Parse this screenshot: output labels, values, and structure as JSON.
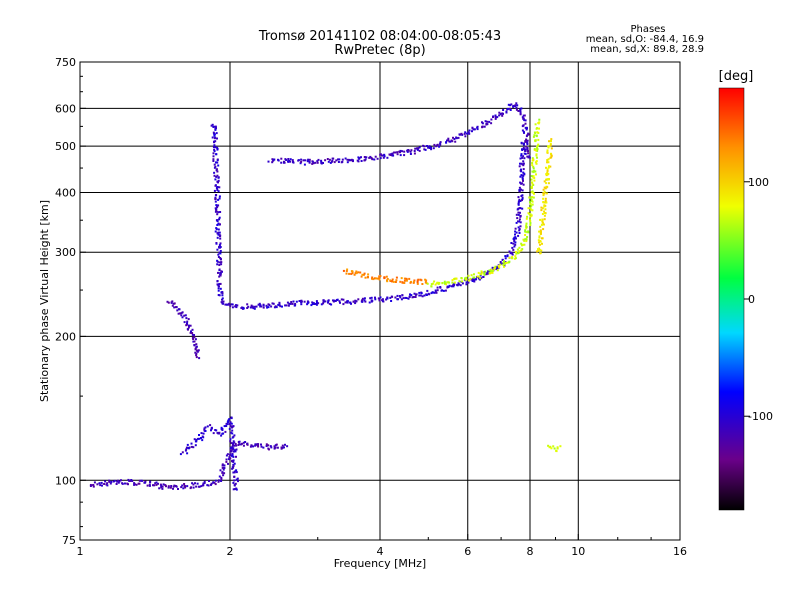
{
  "chart_data": {
    "type": "scatter",
    "title": "Tromsø 20141102 08:04:00-08:05:43",
    "subtitle": "RwPretec (8p)",
    "xlabel": "Frequency [MHz]",
    "ylabel": "Stationary phase Virtual Height [km]",
    "x_scale": "log",
    "y_scale": "log",
    "xlim": [
      1,
      16
    ],
    "ylim": [
      75,
      750
    ],
    "x_ticks": [
      1,
      2,
      4,
      6,
      8,
      10,
      16
    ],
    "x_tick_labels": [
      "1",
      "2",
      "4",
      "6",
      "8",
      "10",
      "16"
    ],
    "x_gridlines": [
      2,
      4,
      6,
      8,
      10
    ],
    "y_ticks": [
      75,
      100,
      200,
      300,
      400,
      500,
      600,
      750
    ],
    "y_tick_labels": [
      "75",
      "100",
      "200",
      "300",
      "400",
      "500",
      "600",
      "750"
    ],
    "y_gridlines": [
      100,
      200,
      300,
      400,
      500,
      600
    ],
    "grid": true,
    "phase_stats": {
      "heading": "Phases",
      "line_o": "mean, sd,O: -84.4, 16.9",
      "line_x": "mean, sd,X:  89.8, 28.9"
    },
    "colorbar": {
      "label": "[deg]",
      "range": [
        -180,
        180
      ],
      "ticks": [
        100,
        0,
        -100
      ],
      "tick_labels": [
        "100",
        "0",
        "-100"
      ],
      "colormap": "rainbow: -180 black, purple, blue, cyan, green, yellow, orange, red 180"
    },
    "traces": [
      {
        "points": [
          [
            1.85,
            560
          ],
          [
            1.86,
            500
          ],
          [
            1.87,
            440
          ],
          [
            1.88,
            390
          ],
          [
            1.88,
            340
          ],
          [
            1.89,
            300
          ],
          [
            1.9,
            270
          ],
          [
            1.9,
            250
          ],
          [
            1.92,
            237
          ],
          [
            2.0,
            232
          ],
          [
            2.2,
            232
          ],
          [
            2.5,
            234
          ],
          [
            2.8,
            236
          ],
          [
            3.2,
            237
          ],
          [
            3.6,
            238
          ],
          [
            4.0,
            240
          ],
          [
            4.5,
            243
          ],
          [
            5.0,
            248
          ],
          [
            5.5,
            255
          ],
          [
            6.0,
            262
          ],
          [
            6.5,
            272
          ],
          [
            7.0,
            285
          ],
          [
            7.3,
            300
          ],
          [
            7.5,
            330
          ],
          [
            7.6,
            370
          ],
          [
            7.65,
            420
          ],
          [
            7.7,
            480
          ],
          [
            7.72,
            520
          ]
        ],
        "phase": -105
      },
      {
        "points": [
          [
            2.4,
            470
          ],
          [
            2.8,
            465
          ],
          [
            3.2,
            468
          ],
          [
            3.6,
            472
          ],
          [
            4.0,
            478
          ],
          [
            4.5,
            487
          ],
          [
            5.0,
            500
          ],
          [
            5.5,
            515
          ],
          [
            6.0,
            535
          ],
          [
            6.5,
            560
          ],
          [
            7.0,
            590
          ],
          [
            7.4,
            615
          ],
          [
            7.6,
            600
          ],
          [
            7.75,
            560
          ],
          [
            7.85,
            520
          ],
          [
            7.9,
            470
          ]
        ],
        "phase": -110
      },
      {
        "points": [
          [
            3.4,
            275
          ],
          [
            3.8,
            268
          ],
          [
            4.2,
            264
          ],
          [
            4.6,
            262
          ],
          [
            5.0,
            261
          ]
        ],
        "phase": 135
      },
      {
        "points": [
          [
            5.0,
            258
          ],
          [
            5.6,
            262
          ],
          [
            6.2,
            268
          ],
          [
            6.8,
            278
          ],
          [
            7.3,
            290
          ],
          [
            7.7,
            310
          ],
          [
            7.9,
            340
          ],
          [
            8.0,
            380
          ],
          [
            8.1,
            430
          ],
          [
            8.15,
            480
          ],
          [
            8.2,
            530
          ],
          [
            8.25,
            570
          ]
        ],
        "phase": 70
      },
      {
        "points": [
          [
            8.3,
            300
          ],
          [
            8.4,
            340
          ],
          [
            8.5,
            380
          ],
          [
            8.6,
            420
          ],
          [
            8.7,
            470
          ],
          [
            8.75,
            520
          ]
        ],
        "phase": 90
      },
      {
        "points": [
          [
            1.5,
            238
          ],
          [
            1.55,
            232
          ],
          [
            1.6,
            225
          ],
          [
            1.65,
            210
          ],
          [
            1.7,
            195
          ],
          [
            1.72,
            180
          ]
        ],
        "phase": -115
      },
      {
        "points": [
          [
            1.05,
            98
          ],
          [
            1.2,
            100
          ],
          [
            1.35,
            99
          ],
          [
            1.5,
            97
          ],
          [
            1.7,
            98
          ],
          [
            1.9,
            100
          ],
          [
            1.95,
            110
          ],
          [
            2.05,
            120
          ],
          [
            2.4,
            118
          ],
          [
            2.6,
            118
          ]
        ],
        "phase": -115
      },
      {
        "points": [
          [
            1.6,
            115
          ],
          [
            1.7,
            120
          ],
          [
            1.8,
            130
          ],
          [
            1.9,
            125
          ],
          [
            2.0,
            135
          ],
          [
            2.05,
            95
          ]
        ],
        "phase": -105
      },
      {
        "points": [
          [
            8.7,
            118
          ],
          [
            9.0,
            117
          ],
          [
            9.2,
            119
          ]
        ],
        "phase": 70
      }
    ]
  }
}
